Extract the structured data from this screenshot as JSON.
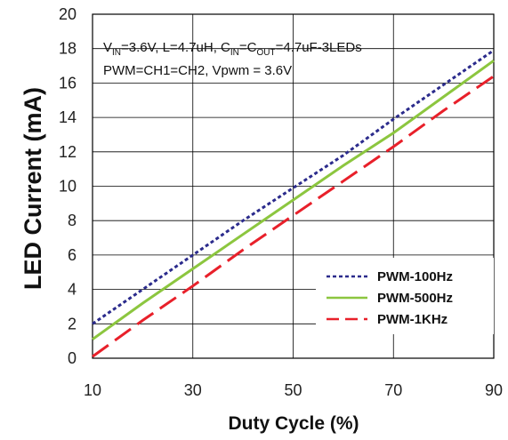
{
  "chart_data": {
    "type": "line",
    "title": "",
    "xlabel": "Duty Cycle (%)",
    "ylabel": "LED Current (mA)",
    "xlim": [
      10,
      90
    ],
    "ylim": [
      0,
      20
    ],
    "x_ticks": [
      10,
      30,
      50,
      70,
      90
    ],
    "y_ticks": [
      0,
      2,
      4,
      6,
      8,
      10,
      12,
      14,
      16,
      18,
      20
    ],
    "grid": true,
    "legend_position": "bottom-right",
    "annotations": {
      "line1": {
        "v": "V",
        "v_sub": "IN",
        "a": "=3.6V, L=4.7uH, C",
        "c_sub": "IN",
        "b": "=C",
        "cout_sub": "OUT",
        "c": "=4.7uF-3LEDs"
      },
      "line2": "PWM=CH1=CH2, Vpwm = 3.6V"
    },
    "series": [
      {
        "name": "PWM-100Hz",
        "color": "#2b2b8c",
        "dash": "dotted",
        "x": [
          10,
          20,
          30,
          40,
          50,
          60,
          70,
          80,
          90
        ],
        "values": [
          2.0,
          4.0,
          6.0,
          8.0,
          9.9,
          11.8,
          13.9,
          15.9,
          17.9
        ]
      },
      {
        "name": "PWM-500Hz",
        "color": "#8cc63f",
        "dash": "solid",
        "x": [
          10,
          20,
          30,
          40,
          50,
          60,
          70,
          80,
          90
        ],
        "values": [
          1.1,
          3.2,
          5.2,
          7.2,
          9.2,
          11.2,
          13.1,
          15.2,
          17.3
        ]
      },
      {
        "name": "PWM-1KHz",
        "color": "#e8202a",
        "dash": "dashed",
        "x": [
          10,
          20,
          30,
          40,
          50,
          60,
          70,
          80,
          90
        ],
        "values": [
          0.1,
          2.2,
          4.2,
          6.3,
          8.3,
          10.3,
          12.3,
          14.4,
          16.4
        ]
      }
    ]
  }
}
